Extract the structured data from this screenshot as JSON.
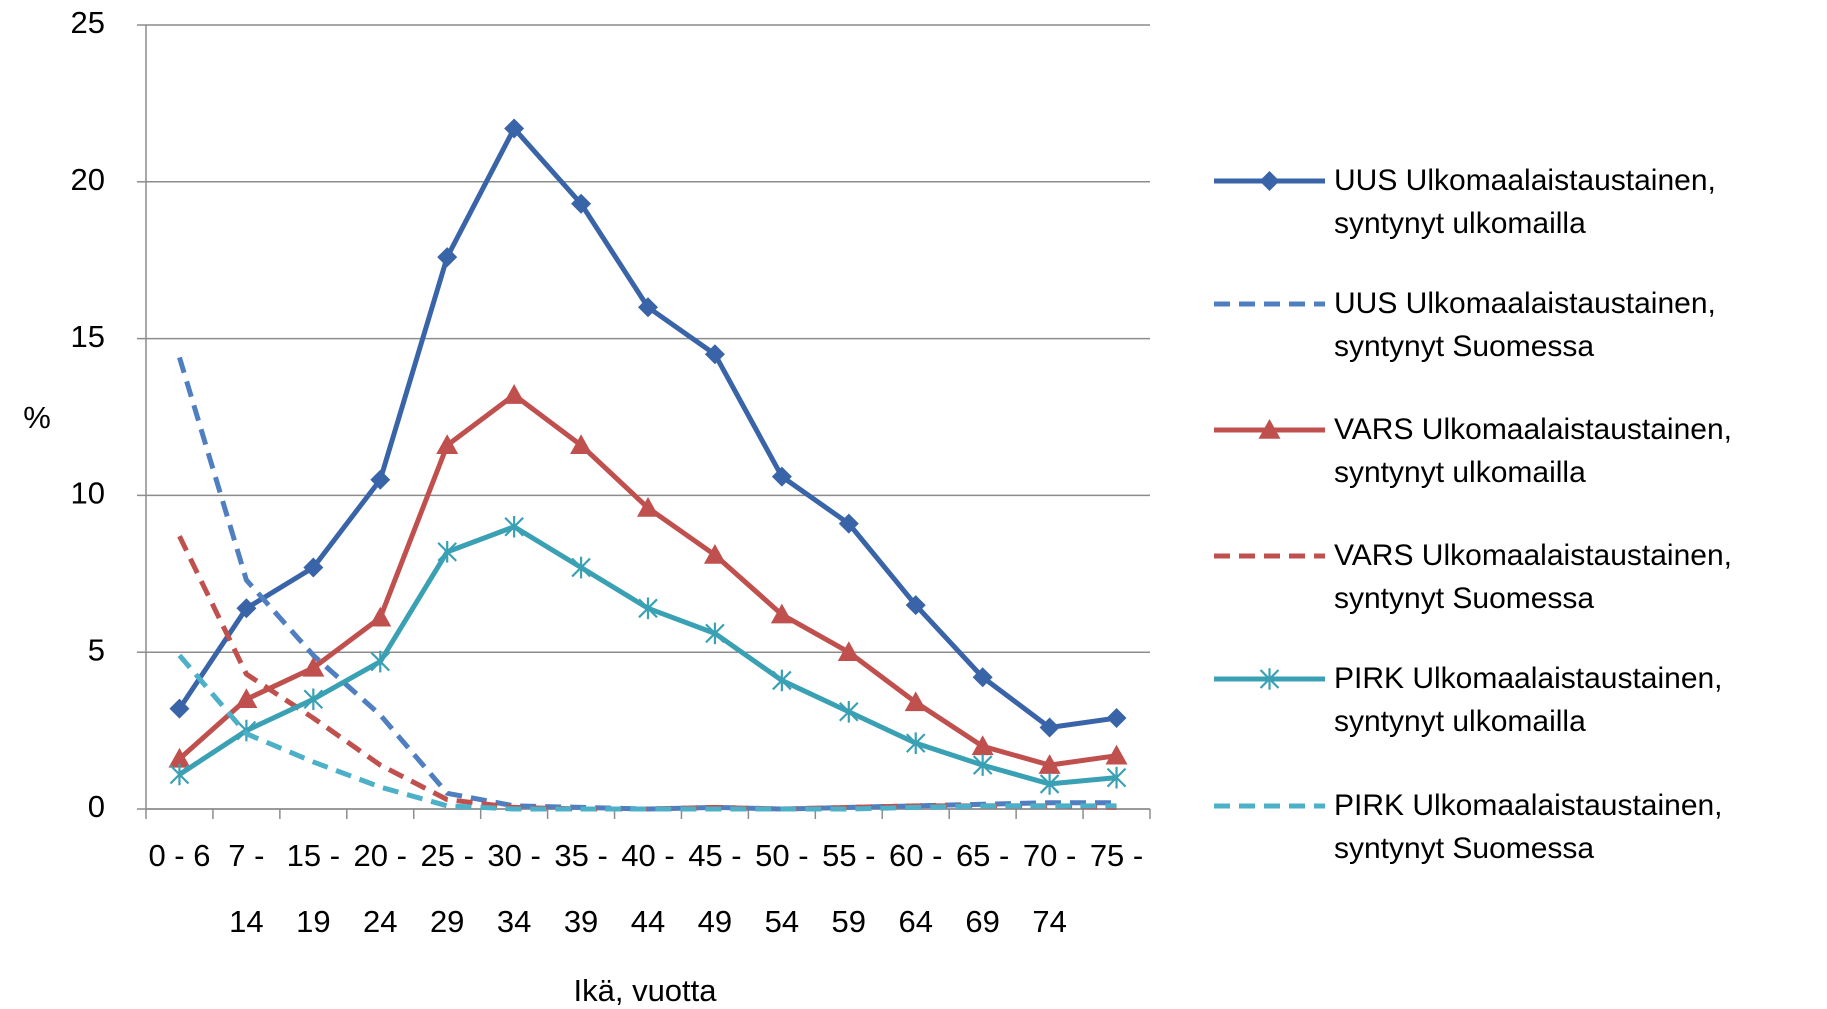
{
  "chart_data": {
    "type": "line",
    "x_label": "Ikä, vuotta",
    "y_label": "%",
    "categories": [
      "0 - 6",
      "7 - 14",
      "15 - 19",
      "20 - 24",
      "25 - 29",
      "30 - 34",
      "35 - 39",
      "40 - 44",
      "45 - 49",
      "50 - 54",
      "55 - 59",
      "60 - 64",
      "65 - 69",
      "70 - 74",
      "75 -"
    ],
    "ylim": [
      0,
      25
    ],
    "yticks": [
      0,
      5,
      10,
      15,
      20,
      25
    ],
    "grid": true,
    "legend": "right",
    "series": [
      {
        "name": "UUS Ulkomaalaistaustainen, syntynyt ulkomailla",
        "color": "#3a64a8",
        "dash": false,
        "marker": "diamond",
        "values": [
          3.2,
          6.4,
          7.7,
          10.5,
          17.6,
          21.7,
          19.3,
          16.0,
          14.5,
          10.6,
          9.1,
          6.5,
          4.2,
          2.6,
          2.9
        ]
      },
      {
        "name": "UUS Ulkomaalaistaustainen, syntynyt Suomessa",
        "color": "#4f7fc0",
        "dash": true,
        "marker": "none",
        "values": [
          14.4,
          7.3,
          4.9,
          3.0,
          0.5,
          0.1,
          0.05,
          0.0,
          0.05,
          0.0,
          0.05,
          0.1,
          0.15,
          0.2,
          0.2
        ]
      },
      {
        "name": "VARS Ulkomaalaistaustainen, syntynyt ulkomailla",
        "color": "#c0504d",
        "dash": false,
        "marker": "triangle",
        "values": [
          1.6,
          3.5,
          4.5,
          6.1,
          11.6,
          13.2,
          11.6,
          9.6,
          8.1,
          6.2,
          5.0,
          3.4,
          2.0,
          1.4,
          1.7
        ]
      },
      {
        "name": "VARS Ulkomaalaistaustainen, syntynyt Suomessa",
        "color": "#c0504d",
        "dash": true,
        "marker": "none",
        "values": [
          8.7,
          4.3,
          2.9,
          1.4,
          0.3,
          0.05,
          0.0,
          0.0,
          0.05,
          0.0,
          0.05,
          0.1,
          0.1,
          0.1,
          0.05
        ]
      },
      {
        "name": "PIRK Ulkomaalaistaustainen, syntynyt ulkomailla",
        "color": "#3aa0b4",
        "dash": false,
        "marker": "asterisk",
        "values": [
          1.1,
          2.5,
          3.5,
          4.7,
          8.2,
          9.0,
          7.7,
          6.4,
          5.6,
          4.1,
          3.1,
          2.1,
          1.4,
          0.8,
          1.0
        ]
      },
      {
        "name": "PIRK Ulkomaalaistaustainen, syntynyt Suomessa",
        "color": "#4bb0c8",
        "dash": true,
        "marker": "none",
        "values": [
          4.9,
          2.4,
          1.5,
          0.7,
          0.1,
          0.0,
          0.0,
          0.0,
          0.0,
          0.0,
          0.0,
          0.05,
          0.1,
          0.1,
          0.1
        ]
      }
    ]
  }
}
